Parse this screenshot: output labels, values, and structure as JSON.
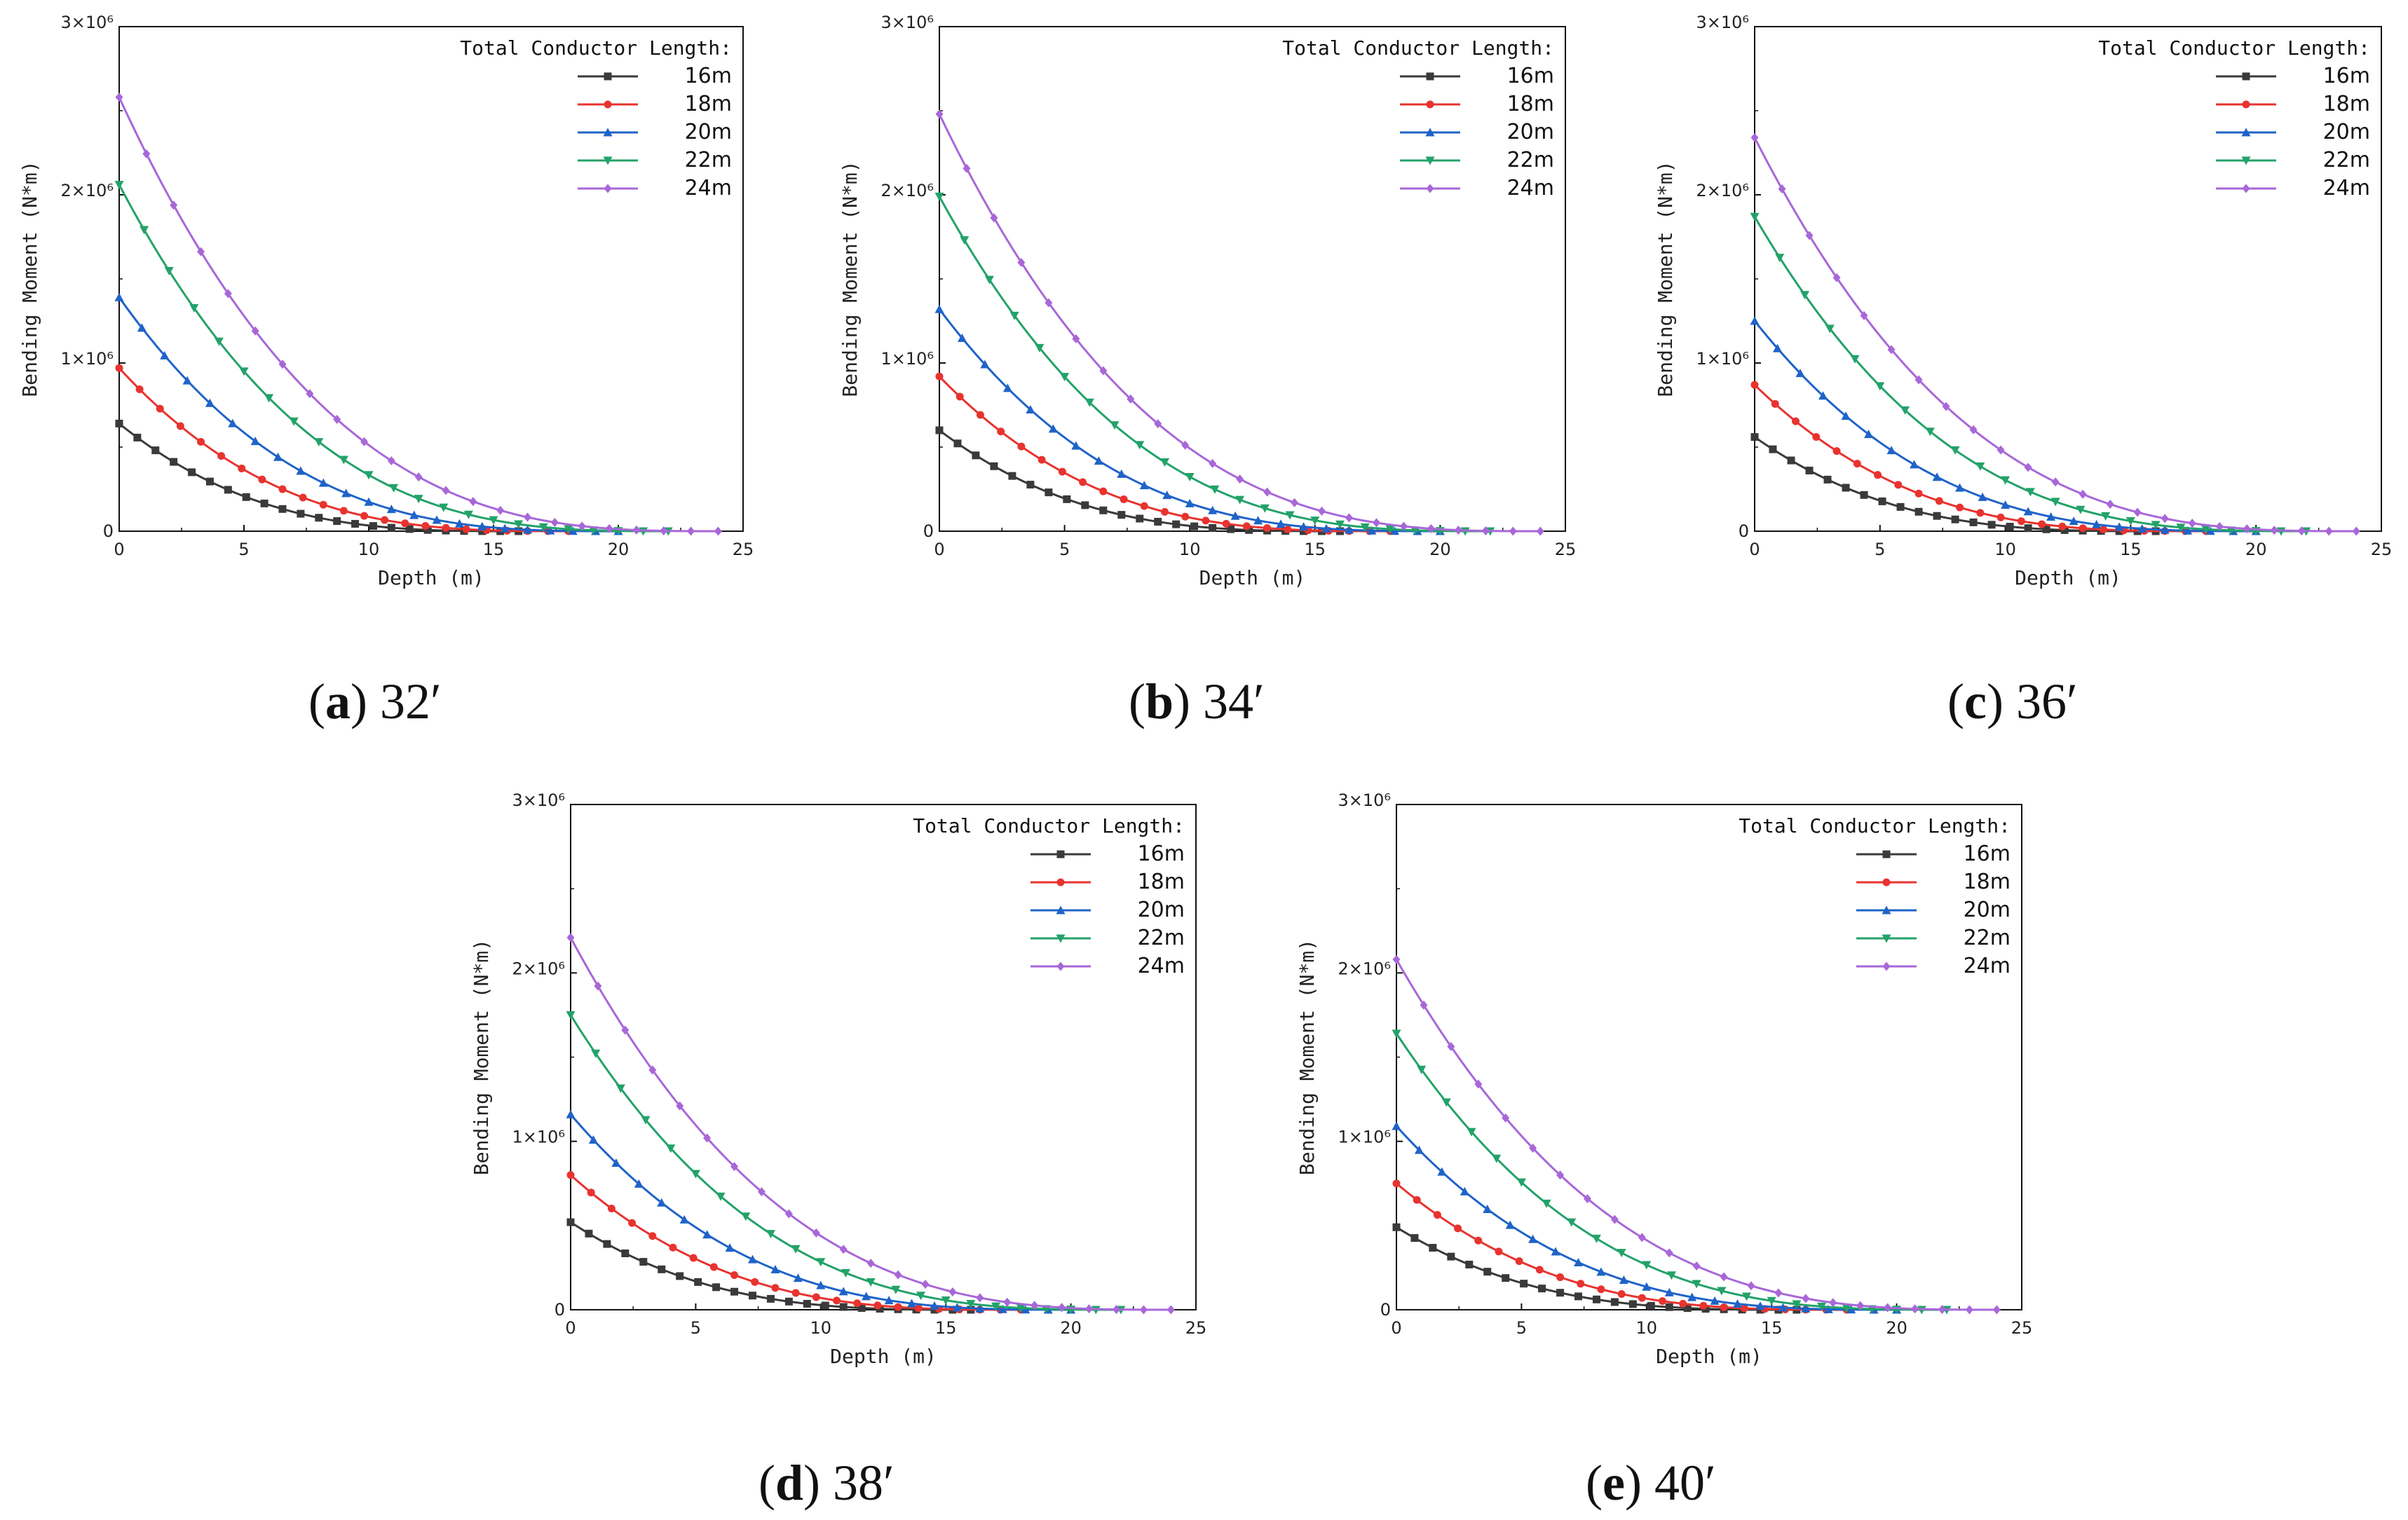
{
  "legend_title": "Total Conductor Length:",
  "series_names": [
    "16m",
    "18m",
    "20m",
    "22m",
    "24m"
  ],
  "series_colors": [
    "#3a3a3a",
    "#e8332f",
    "#1f63c8",
    "#23a269",
    "#a867d8"
  ],
  "chart_data": [
    {
      "type": "line",
      "caption_letter": "a",
      "caption_text": "32′",
      "xlabel": "Depth (m)",
      "ylabel": "Bending Moment (N*m)",
      "xlim": [
        0,
        25
      ],
      "ylim": [
        0,
        3000000
      ],
      "x_ticks": [
        "0",
        "5",
        "10",
        "15",
        "20",
        "25"
      ],
      "y_ticks": [
        "0",
        "1×10⁶",
        "2×10⁶",
        "3×10⁶"
      ],
      "zero_depth": [
        16,
        18,
        20,
        22,
        24
      ],
      "series": [
        {
          "name": "16m",
          "start": 640000
        },
        {
          "name": "18m",
          "start": 970000
        },
        {
          "name": "20m",
          "start": 1390000
        },
        {
          "name": "22m",
          "start": 2060000
        },
        {
          "name": "24m",
          "start": 2580000
        }
      ]
    },
    {
      "type": "line",
      "caption_letter": "b",
      "caption_text": "34′",
      "xlabel": "Depth (m)",
      "ylabel": "Bending Moment (N*m)",
      "xlim": [
        0,
        25
      ],
      "ylim": [
        0,
        3000000
      ],
      "x_ticks": [
        "0",
        "5",
        "10",
        "15",
        "20",
        "25"
      ],
      "y_ticks": [
        "0",
        "1×10⁶",
        "2×10⁶",
        "3×10⁶"
      ],
      "zero_depth": [
        16,
        18,
        20,
        22,
        24
      ],
      "series": [
        {
          "name": "16m",
          "start": 600000
        },
        {
          "name": "18m",
          "start": 920000
        },
        {
          "name": "20m",
          "start": 1320000
        },
        {
          "name": "22m",
          "start": 1990000
        },
        {
          "name": "24m",
          "start": 2480000
        }
      ]
    },
    {
      "type": "line",
      "caption_letter": "c",
      "caption_text": "36′",
      "xlabel": "Depth (m)",
      "ylabel": "Bending Moment (N*m)",
      "xlim": [
        0,
        25
      ],
      "ylim": [
        0,
        3000000
      ],
      "x_ticks": [
        "0",
        "5",
        "10",
        "15",
        "20",
        "25"
      ],
      "y_ticks": [
        "0",
        "1×10⁶",
        "2×10⁶",
        "3×10⁶"
      ],
      "zero_depth": [
        16,
        18,
        20,
        22,
        24
      ],
      "series": [
        {
          "name": "16m",
          "start": 560000
        },
        {
          "name": "18m",
          "start": 870000
        },
        {
          "name": "20m",
          "start": 1250000
        },
        {
          "name": "22m",
          "start": 1870000
        },
        {
          "name": "24m",
          "start": 2340000
        }
      ]
    },
    {
      "type": "line",
      "caption_letter": "d",
      "caption_text": "38′",
      "xlabel": "Depth (m)",
      "ylabel": "Bending Moment (N*m)",
      "xlim": [
        0,
        25
      ],
      "ylim": [
        0,
        3000000
      ],
      "x_ticks": [
        "0",
        "5",
        "10",
        "15",
        "20",
        "25"
      ],
      "y_ticks": [
        "0",
        "1×10⁶",
        "2×10⁶",
        "3×10⁶"
      ],
      "zero_depth": [
        16,
        18,
        20,
        22,
        24
      ],
      "series": [
        {
          "name": "16m",
          "start": 520000
        },
        {
          "name": "18m",
          "start": 800000
        },
        {
          "name": "20m",
          "start": 1160000
        },
        {
          "name": "22m",
          "start": 1750000
        },
        {
          "name": "24m",
          "start": 2210000
        }
      ]
    },
    {
      "type": "line",
      "caption_letter": "e",
      "caption_text": "40′",
      "xlabel": "Depth (m)",
      "ylabel": "Bending Moment (N*m)",
      "xlim": [
        0,
        25
      ],
      "ylim": [
        0,
        3000000
      ],
      "x_ticks": [
        "0",
        "5",
        "10",
        "15",
        "20",
        "25"
      ],
      "y_ticks": [
        "0",
        "1×10⁶",
        "2×10⁶",
        "3×10⁶"
      ],
      "zero_depth": [
        16,
        18,
        20,
        22,
        24
      ],
      "series": [
        {
          "name": "16m",
          "start": 490000
        },
        {
          "name": "18m",
          "start": 750000
        },
        {
          "name": "20m",
          "start": 1090000
        },
        {
          "name": "22m",
          "start": 1640000
        },
        {
          "name": "24m",
          "start": 2080000
        }
      ]
    }
  ]
}
